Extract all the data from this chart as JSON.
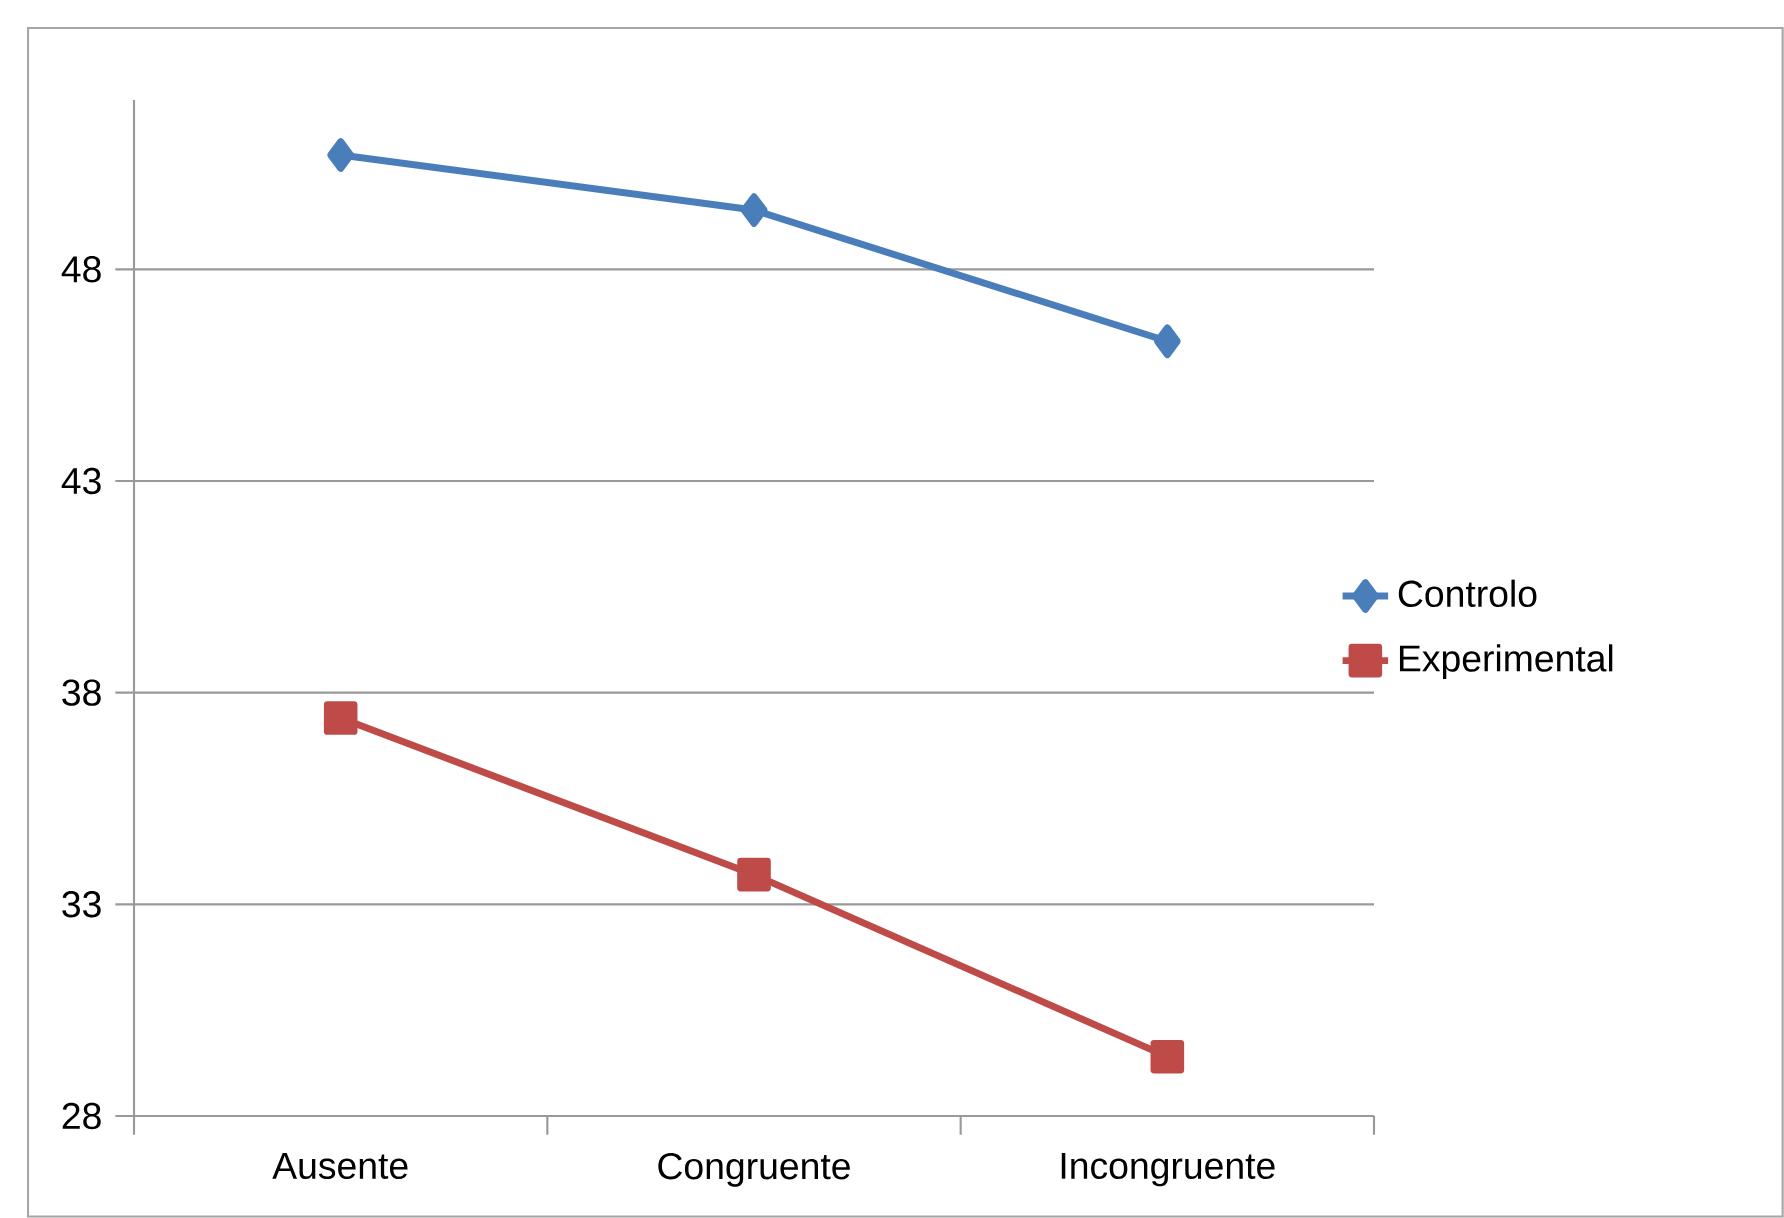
{
  "chart_data": {
    "type": "line",
    "categories": [
      "Ausente",
      "Congruente",
      "Incongruente"
    ],
    "series": [
      {
        "name": "Controlo",
        "color": "#4a7ebb",
        "marker": "diamond",
        "values": [
          50.7,
          49.4,
          46.3
        ]
      },
      {
        "name": "Experimental",
        "color": "#be4b48",
        "marker": "square",
        "values": [
          37.4,
          33.7,
          29.4
        ]
      }
    ],
    "ylim": [
      28,
      52
    ],
    "yticks": [
      28,
      33,
      38,
      43,
      48
    ],
    "grid": "y",
    "legend": "right",
    "line_style": "solid"
  }
}
